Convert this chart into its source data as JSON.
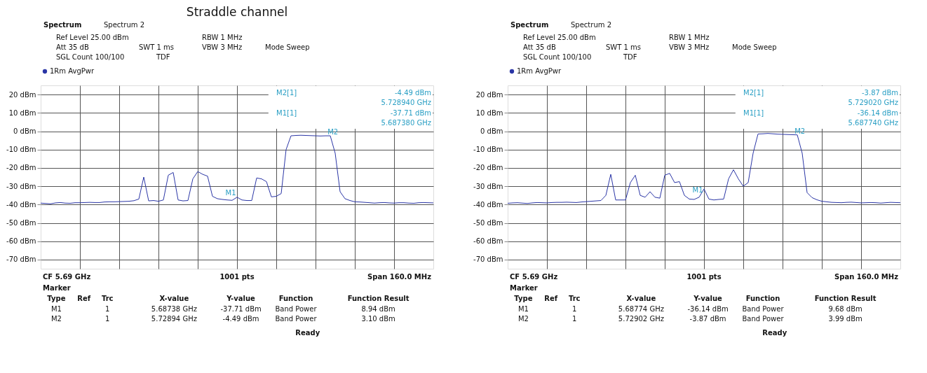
{
  "chart_data": [
    {
      "type": "line",
      "title": "Straddle channel",
      "categories": [
        null,
        null,
        null,
        null,
        null,
        null,
        null,
        null,
        null,
        null,
        null,
        null,
        null,
        null,
        null,
        null,
        null,
        null,
        null,
        null,
        null,
        null,
        null,
        null,
        null,
        null,
        null,
        null,
        null,
        null,
        null,
        null,
        null,
        null,
        null,
        null,
        null,
        null,
        null,
        null,
        null,
        null,
        null,
        null,
        null,
        null,
        null,
        null,
        null,
        null,
        null,
        null,
        null,
        null,
        null,
        null,
        null,
        null,
        null,
        null,
        null,
        null,
        null,
        null,
        null,
        null,
        null,
        null,
        null,
        null,
        null,
        null,
        null,
        null,
        null,
        null,
        null,
        null,
        null,
        null,
        null
      ],
      "ylim": [
        -75,
        25
      ],
      "yticks": [
        {
          "value": 20,
          "label": "20 dBm"
        },
        {
          "value": 10,
          "label": "10 dBm"
        },
        {
          "value": 0,
          "label": "0 dBm"
        },
        {
          "value": -10,
          "label": "-10 dBm"
        },
        {
          "value": -20,
          "label": "-20 dBm"
        },
        {
          "value": -30,
          "label": "-30 dBm"
        },
        {
          "value": -40,
          "label": "-40 dBm"
        },
        {
          "value": -50,
          "label": "-50 dBm"
        },
        {
          "value": -60,
          "label": "-60 dBm"
        },
        {
          "value": -70,
          "label": "-70 dBm"
        }
      ],
      "grid": true,
      "legend": "top left",
      "tick_labels": "y",
      "line_style": "solid",
      "series": [
        {
          "name": "1Rm AvgPwr",
          "color": "#2b36a6",
          "values": [
            -39.2,
            -39.4,
            -39.6,
            -39.1,
            -38.9,
            -39.2,
            -39.3,
            -39.0,
            -39.0,
            -38.9,
            -38.8,
            -38.9,
            -38.9,
            -38.6,
            -38.5,
            -38.5,
            -38.4,
            -38.3,
            -38.2,
            -37.9,
            -37.0,
            -25.0,
            -38.0,
            -37.8,
            -38.2,
            -37.5,
            -24.0,
            -22.5,
            -37.5,
            -38.0,
            -37.8,
            -26.0,
            -22.0,
            -23.5,
            -24.5,
            -35.5,
            -36.8,
            -37.2,
            -37.5,
            -37.7,
            -36.0,
            -37.5,
            -37.8,
            -37.8,
            -25.5,
            -26.0,
            -27.5,
            -35.8,
            -35.5,
            -34.0,
            -10.0,
            -2.5,
            -2.3,
            -2.2,
            -2.3,
            -2.4,
            -2.5,
            -2.6,
            -2.5,
            -2.5,
            -12.0,
            -33.0,
            -36.8,
            -37.8,
            -38.5,
            -38.6,
            -38.8,
            -39.0,
            -39.2,
            -39.0,
            -38.9,
            -39.1,
            -39.2,
            -39.0,
            -39.0,
            -39.2,
            -39.3,
            -39.0,
            -38.9,
            -39.0,
            -39.1
          ]
        }
      ],
      "annotations": [
        "Spectrum",
        "Spectrum 2",
        "Ref Level 25.00 dBm",
        "RBW 1 MHz",
        "Att 35 dB",
        "SWT 1 ms",
        "VBW 3 MHz",
        "Mode Sweep",
        "SGL Count 100/100",
        "TDF",
        "M2[1]",
        "-4.49 dBm",
        "5.728940 GHz",
        "M1[1]",
        "-37.71 dBm",
        "5.687380 GHz",
        "CF 5.69 GHz",
        "1001 pts",
        "Span 160.0 MHz",
        "Marker",
        "Type",
        "Ref",
        "Trc",
        "X-value",
        "Y-value",
        "Function",
        "Function Result",
        "M1",
        "1",
        "5.68738 GHz",
        "-37.71 dBm",
        "Band Power",
        "8.94 dBm",
        "M2",
        "1",
        "5.72894 GHz",
        "-4.49 dBm",
        "Band Power",
        "3.10 dBm",
        "Ready",
        {
          "text": "M1",
          "y": -37.71
        },
        {
          "text": "M2",
          "y": -4.49
        }
      ]
    },
    {
      "type": "line",
      "categories": [
        null,
        null,
        null,
        null,
        null,
        null,
        null,
        null,
        null,
        null,
        null,
        null,
        null,
        null,
        null,
        null,
        null,
        null,
        null,
        null,
        null,
        null,
        null,
        null,
        null,
        null,
        null,
        null,
        null,
        null,
        null,
        null,
        null,
        null,
        null,
        null,
        null,
        null,
        null,
        null,
        null,
        null,
        null,
        null,
        null,
        null,
        null,
        null,
        null,
        null,
        null,
        null,
        null,
        null,
        null,
        null,
        null,
        null,
        null,
        null,
        null,
        null,
        null,
        null,
        null,
        null,
        null,
        null,
        null,
        null,
        null,
        null,
        null,
        null,
        null,
        null,
        null,
        null,
        null,
        null,
        null
      ],
      "ylim": [
        -75,
        25
      ],
      "yticks": [
        {
          "value": 20,
          "label": "20 dBm"
        },
        {
          "value": 10,
          "label": "10 dBm"
        },
        {
          "value": 0,
          "label": "0 dBm"
        },
        {
          "value": -10,
          "label": "-10 dBm"
        },
        {
          "value": -20,
          "label": "-20 dBm"
        },
        {
          "value": -30,
          "label": "-30 dBm"
        },
        {
          "value": -40,
          "label": "-40 dBm"
        },
        {
          "value": -50,
          "label": "-50 dBm"
        },
        {
          "value": -60,
          "label": "-60 dBm"
        },
        {
          "value": -70,
          "label": "-70 dBm"
        }
      ],
      "grid": true,
      "legend": "top left",
      "tick_labels": "y",
      "line_style": "solid",
      "series": [
        {
          "name": "1Rm AvgPwr",
          "color": "#2b36a6",
          "values": [
            -39.3,
            -39.1,
            -39.0,
            -39.2,
            -39.4,
            -39.1,
            -38.9,
            -39.0,
            -39.1,
            -38.9,
            -38.8,
            -38.8,
            -38.7,
            -38.8,
            -38.9,
            -38.6,
            -38.4,
            -38.2,
            -38.0,
            -37.8,
            -35.0,
            -23.5,
            -37.5,
            -37.5,
            -37.5,
            -28.0,
            -24.0,
            -35.0,
            -36.0,
            -33.0,
            -36.0,
            -36.5,
            -24.0,
            -23.0,
            -28.0,
            -27.5,
            -35.0,
            -37.0,
            -37.2,
            -36.0,
            -31.5,
            -37.0,
            -37.5,
            -37.2,
            -37.0,
            -26.0,
            -21.0,
            -26.0,
            -30.0,
            -28.0,
            -12.0,
            -1.5,
            -1.4,
            -1.2,
            -1.4,
            -1.6,
            -1.7,
            -1.8,
            -1.9,
            -2.0,
            -12.0,
            -33.5,
            -36.2,
            -37.4,
            -38.2,
            -38.5,
            -38.8,
            -38.9,
            -39.0,
            -38.8,
            -38.7,
            -38.9,
            -39.1,
            -39.0,
            -38.9,
            -39.0,
            -39.2,
            -39.0,
            -38.8,
            -38.9,
            -39.0
          ]
        }
      ],
      "annotations": [
        "Spectrum",
        "Spectrum 2",
        "Ref Level 25.00 dBm",
        "RBW 1 MHz",
        "Att 35 dB",
        "SWT 1 ms",
        "VBW 3 MHz",
        "Mode Sweep",
        "SGL Count 100/100",
        "TDF",
        "M2[1]",
        "-3.87 dBm",
        "5.729020 GHz",
        "M1[1]",
        "-36.14 dBm",
        "5.687740 GHz",
        "CF 5.69 GHz",
        "1001 pts",
        "Span 160.0 MHz",
        "Marker",
        "Type",
        "Ref",
        "Trc",
        "X-value",
        "Y-value",
        "Function",
        "Function Result",
        "M1",
        "1",
        "5.68774 GHz",
        "-36.14 dBm",
        "Band Power",
        "9.68 dBm",
        "M2",
        "1",
        "5.72902 GHz",
        "-3.87 dBm",
        "Band Power",
        "3.99 dBm",
        "Ready",
        {
          "text": "M1",
          "y": -36.14
        },
        {
          "text": "M2",
          "y": -3.87
        }
      ]
    }
  ]
}
